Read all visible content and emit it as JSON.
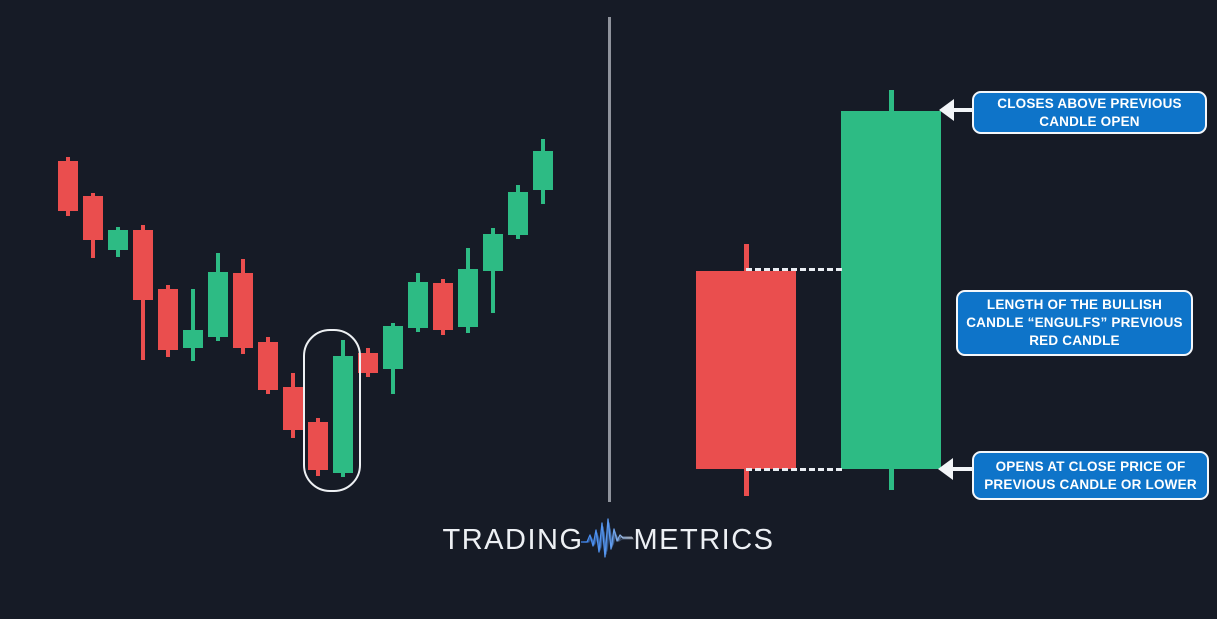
{
  "colors": {
    "background": "#161b26",
    "bullish_green": "#2dbb84",
    "bearish_red": "#ea4e4e",
    "annotation_blue": "#0e74c9",
    "annotation_border_white": "#f4f7fa",
    "divider_gray": "#8f939c",
    "accent_white": "#f2f5f8",
    "logo_text": "#edf0f4",
    "logo_icon_blue": "#3f86ee"
  },
  "annotations": [
    {
      "id": "closes-above",
      "label": "CLOSES ABOVE PREVIOUS\nCANDLE OPEN"
    },
    {
      "id": "engulfs",
      "label": "LENGTH OF THE BULLISH\nCANDLE “ENGULFS” PREVIOUS\nRED CANDLE"
    },
    {
      "id": "opens-at-close",
      "label": "OPENS AT CLOSE PRICE OF\nPREVIOUS CANDLE OR LOWER"
    }
  ],
  "logo": {
    "left": "TRADING",
    "right": "METRICS",
    "icon": "waveform-icon"
  },
  "chart_data": [
    {
      "type": "candlestick",
      "title": "Downtrend reversing to uptrend with bullish engulfing pair highlighted",
      "ylim": [
        0,
        125
      ],
      "grid": false,
      "candle_width": 20,
      "wick_width": 4,
      "x_centers": [
        68,
        93,
        118,
        143,
        168,
        193,
        218,
        243,
        268,
        293,
        318,
        343,
        368,
        393,
        418,
        443,
        468,
        493,
        518,
        543
      ],
      "candles": [
        {
          "dir": "bear",
          "open": 99.75,
          "high": 100.75,
          "low": 86.0,
          "close": 87.25
        },
        {
          "dir": "bear",
          "open": 91.0,
          "high": 91.75,
          "low": 75.5,
          "close": 80.0
        },
        {
          "dir": "bull",
          "open": 77.5,
          "high": 83.25,
          "low": 75.75,
          "close": 82.5
        },
        {
          "dir": "bear",
          "open": 82.5,
          "high": 83.75,
          "low": 50.0,
          "close": 65.0
        },
        {
          "dir": "bear",
          "open": 67.75,
          "high": 68.75,
          "low": 50.75,
          "close": 52.5
        },
        {
          "dir": "bull",
          "open": 53.0,
          "high": 67.75,
          "low": 49.75,
          "close": 57.5
        },
        {
          "dir": "bull",
          "open": 55.75,
          "high": 76.75,
          "low": 54.75,
          "close": 72.0
        },
        {
          "dir": "bear",
          "open": 71.75,
          "high": 75.25,
          "low": 51.5,
          "close": 53.0
        },
        {
          "dir": "bear",
          "open": 54.5,
          "high": 55.75,
          "low": 41.5,
          "close": 42.5
        },
        {
          "dir": "bear",
          "open": 43.25,
          "high": 46.75,
          "low": 30.5,
          "close": 32.5
        },
        {
          "dir": "bear",
          "open": 34.5,
          "high": 35.5,
          "low": 21.0,
          "close": 22.5
        },
        {
          "dir": "bull",
          "open": 21.75,
          "high": 55.0,
          "low": 20.75,
          "close": 51.0
        },
        {
          "dir": "bear",
          "open": 51.75,
          "high": 53.0,
          "low": 45.75,
          "close": 46.75
        },
        {
          "dir": "bull",
          "open": 47.75,
          "high": 59.25,
          "low": 41.5,
          "close": 58.5
        },
        {
          "dir": "bull",
          "open": 58.0,
          "high": 71.75,
          "low": 57.0,
          "close": 69.5
        },
        {
          "dir": "bear",
          "open": 69.25,
          "high": 70.25,
          "low": 56.25,
          "close": 57.5
        },
        {
          "dir": "bull",
          "open": 58.25,
          "high": 78.0,
          "low": 56.75,
          "close": 72.75
        },
        {
          "dir": "bull",
          "open": 72.25,
          "high": 83.0,
          "low": 61.75,
          "close": 81.5
        },
        {
          "dir": "bull",
          "open": 81.25,
          "high": 93.75,
          "low": 80.25,
          "close": 92.0
        },
        {
          "dir": "bull",
          "open": 92.5,
          "high": 105.25,
          "low": 89.0,
          "close": 102.25
        }
      ],
      "highlight": {
        "candle_indexes": [
          10,
          11
        ],
        "x": 303,
        "y": 329,
        "w": 54,
        "h": 159
      }
    },
    {
      "type": "candlestick",
      "title": "Bullish engulfing close-up: red candle fully engulfed by green candle",
      "ylim": [
        0,
        125
      ],
      "grid": false,
      "candle_width": 100,
      "wick_width": 5,
      "x_centers": [
        746,
        891
      ],
      "candles": [
        {
          "dir": "bear",
          "open": 72.25,
          "high": 79.0,
          "low": 16.0,
          "close": 22.75
        },
        {
          "dir": "bull",
          "open": 22.75,
          "high": 117.5,
          "low": 17.5,
          "close": 112.25
        }
      ],
      "guides": [
        {
          "price": 72.5,
          "x1": 746,
          "x2": 842
        },
        {
          "price": 22.5,
          "x1": 746,
          "x2": 842
        }
      ]
    }
  ]
}
